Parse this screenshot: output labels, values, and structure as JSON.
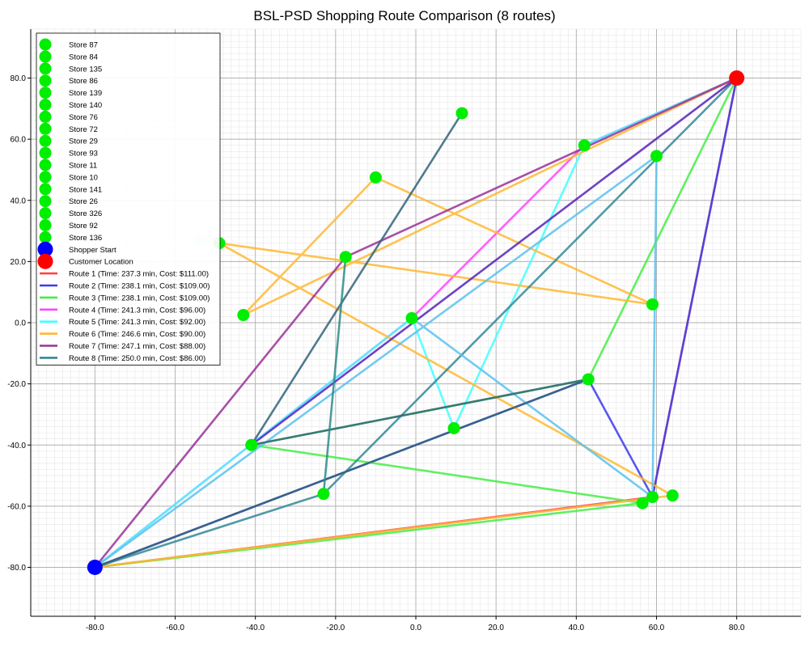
{
  "chart_data": {
    "type": "scatter",
    "title": "BSL-PSD Shopping Route Comparison (8 routes)",
    "xlabel": "",
    "ylabel": "",
    "xlim": [
      -96,
      96
    ],
    "ylim": [
      -96,
      96
    ],
    "x_ticks": [
      -80,
      -60,
      -40,
      -20,
      0,
      20,
      40,
      60,
      80
    ],
    "y_ticks": [
      -80,
      -60,
      -40,
      -20,
      0,
      20,
      40,
      60,
      80
    ],
    "tick_format_decimals": 1,
    "grid": "major and minor",
    "legend_position": "upper-left",
    "stores": [
      {
        "name": "Store 87",
        "x": 11.5,
        "y": 68.5,
        "color": "#00ee00"
      },
      {
        "name": "Store 84",
        "x": 42,
        "y": 58,
        "color": "#00ee00"
      },
      {
        "name": "Store 135",
        "x": 60,
        "y": 54.5,
        "color": "#00ee00"
      },
      {
        "name": "Store 86",
        "x": -10,
        "y": 47.5,
        "color": "#00ee00"
      },
      {
        "name": "Store 139",
        "x": -49,
        "y": 26,
        "color": "#00ee00"
      },
      {
        "name": "Store 140",
        "x": -17.5,
        "y": 21.5,
        "color": "#00ee00"
      },
      {
        "name": "Store 76",
        "x": -43,
        "y": 2.5,
        "color": "#00ee00"
      },
      {
        "name": "Store 72",
        "x": -1,
        "y": 1.5,
        "color": "#00ee00"
      },
      {
        "name": "Store 29",
        "x": 59,
        "y": 6,
        "color": "#00ee00"
      },
      {
        "name": "Store 93",
        "x": 43,
        "y": -18.5,
        "color": "#00ee00"
      },
      {
        "name": "Store 11",
        "x": 9.5,
        "y": -34.5,
        "color": "#00ee00"
      },
      {
        "name": "Store 10",
        "x": -41,
        "y": -40,
        "color": "#00ee00"
      },
      {
        "name": "Store 141",
        "x": -23,
        "y": -56,
        "color": "#00ee00"
      },
      {
        "name": "Store 26",
        "x": 56.5,
        "y": -59,
        "color": "#00ee00"
      },
      {
        "name": "Store 326",
        "x": 59,
        "y": -57,
        "color": "#00ee00"
      },
      {
        "name": "Store 92",
        "x": 64,
        "y": -56.5,
        "color": "#00ee00"
      },
      {
        "name": "Store 136",
        "x": -53.5,
        "y": 27,
        "color": "#ccf5cc"
      }
    ],
    "shopper_start": {
      "label": "Shopper Start",
      "x": -80,
      "y": -80,
      "color": "#0000ff"
    },
    "customer_location": {
      "label": "Customer Location",
      "x": 80,
      "y": 80,
      "color": "#ff0000"
    },
    "routes": [
      {
        "name": "Route 1 (Time: 237.3 min, Cost: $111.00)",
        "color": "#ff4444",
        "points": [
          [
            -80,
            -80
          ],
          [
            59,
            -57
          ],
          [
            80,
            80
          ]
        ]
      },
      {
        "name": "Route 2 (Time: 238.1 min, Cost: $109.00)",
        "color": "#3b3bef",
        "points": [
          [
            -80,
            -80
          ],
          [
            43,
            -18.5
          ],
          [
            59,
            -57
          ],
          [
            80,
            80
          ]
        ]
      },
      {
        "name": "Route 3 (Time: 238.1 min, Cost: $109.00)",
        "color": "#44ee44",
        "points": [
          [
            -80,
            -80
          ],
          [
            56.5,
            -59
          ],
          [
            -41,
            -40
          ],
          [
            43,
            -18.5
          ],
          [
            80,
            80
          ]
        ]
      },
      {
        "name": "Route 4 (Time: 241.3 min, Cost: $96.00)",
        "color": "#ff44ff",
        "points": [
          [
            -80,
            -80
          ],
          [
            -1,
            1.5
          ],
          [
            42,
            58
          ],
          [
            80,
            80
          ]
        ]
      },
      {
        "name": "Route 5 (Time: 241.3 min, Cost: $92.00)",
        "color": "#44ffff",
        "points": [
          [
            -80,
            -80
          ],
          [
            -1,
            1.5
          ],
          [
            9.5,
            -34.5
          ],
          [
            42,
            58
          ],
          [
            80,
            80
          ]
        ]
      },
      {
        "name": "Route 6 (Time: 246.6 min, Cost: $90.00)",
        "color": "#ffb833",
        "points": [
          [
            -80,
            -80
          ],
          [
            64,
            -56.5
          ],
          [
            -49,
            26
          ],
          [
            59,
            6
          ],
          [
            -10,
            47.5
          ],
          [
            -43,
            2.5
          ],
          [
            80,
            80
          ]
        ]
      },
      {
        "name": "Route 7 (Time: 247.1 min, Cost: $88.00)",
        "color": "#993399",
        "points": [
          [
            -80,
            -80
          ],
          [
            -17.5,
            21.5
          ],
          [
            80,
            80
          ]
        ]
      },
      {
        "name": "Route 8 (Time: 250.0 min, Cost: $86.00)",
        "color": "#338899",
        "points": [
          [
            -80,
            -80
          ],
          [
            -23,
            -56
          ],
          [
            80,
            80
          ]
        ]
      }
    ],
    "extra_paths": [
      {
        "color": "#5bc2ee",
        "points": [
          [
            -80,
            -80
          ],
          [
            60,
            54.5
          ],
          [
            59,
            -57
          ],
          [
            -1,
            1.5
          ]
        ]
      },
      {
        "color": "#5522bb",
        "points": [
          [
            -41,
            -40
          ],
          [
            80,
            80
          ]
        ]
      },
      {
        "color": "#33647a",
        "points": [
          [
            -41,
            -40
          ],
          [
            11.5,
            68.5
          ]
        ]
      },
      {
        "color": "#33647a",
        "points": [
          [
            -80,
            -80
          ],
          [
            43,
            -18.5
          ],
          [
            -41,
            -40
          ]
        ]
      },
      {
        "color": "#2e8b8b",
        "points": [
          [
            -23,
            -56
          ],
          [
            -17.5,
            21.5
          ]
        ]
      }
    ]
  }
}
